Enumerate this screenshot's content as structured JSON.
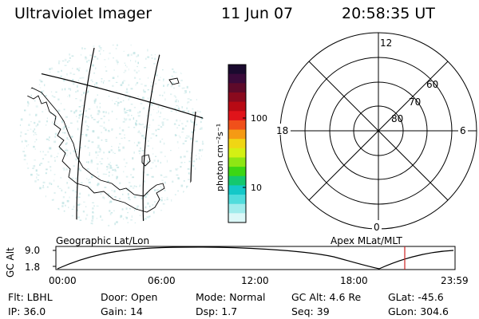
{
  "header": {
    "instrument": "Ultraviolet Imager",
    "date": "11 Jun 07",
    "time": "20:58:35 UT"
  },
  "colorbar": {
    "unit_label": "photon cm⁻²s⁻¹",
    "ticks": [
      "100",
      "10"
    ],
    "colors": [
      "#1a0a2e",
      "#3a0a3a",
      "#5e0a2a",
      "#8a0a1e",
      "#b80a14",
      "#e0141a",
      "#f0501a",
      "#f59a14",
      "#f0d614",
      "#d4f014",
      "#8ee614",
      "#3cd614",
      "#14c86e",
      "#14c8c8",
      "#50dcdc",
      "#a0ecec",
      "#dcf8f8"
    ]
  },
  "left_panel": {
    "title": "Geographic Lat/Lon",
    "tint": "#c6e6e6",
    "line_color": "#000000"
  },
  "right_panel": {
    "title": "Apex  MLat/MLT",
    "mlt_labels": [
      "12",
      "18",
      "6",
      "0"
    ],
    "mlat_labels": [
      "60",
      "70",
      "80"
    ]
  },
  "orbit_plot": {
    "ylabel": "GC Alt",
    "yticks": [
      "9.0",
      "1.8"
    ],
    "xticks": [
      "00:00",
      "06:00",
      "12:00",
      "18:00",
      "23:59"
    ],
    "current_time_marker_color": "#cc2222"
  },
  "footer": {
    "row1": [
      {
        "label": "Flt:",
        "value": "LBHL"
      },
      {
        "label": "Door:",
        "value": "Open"
      },
      {
        "label": "Mode:",
        "value": "Normal"
      },
      {
        "label": "GC Alt:",
        "value": "4.6 Re"
      },
      {
        "label": "GLat:",
        "value": "-45.6"
      }
    ],
    "row2": [
      {
        "label": "IP:",
        "value": "36.0"
      },
      {
        "label": "Gain:",
        "value": "14"
      },
      {
        "label": "Dsp:",
        "value": "1.7"
      },
      {
        "label": "Seq:",
        "value": "39"
      },
      {
        "label": "GLon:",
        "value": "304.6"
      }
    ]
  }
}
